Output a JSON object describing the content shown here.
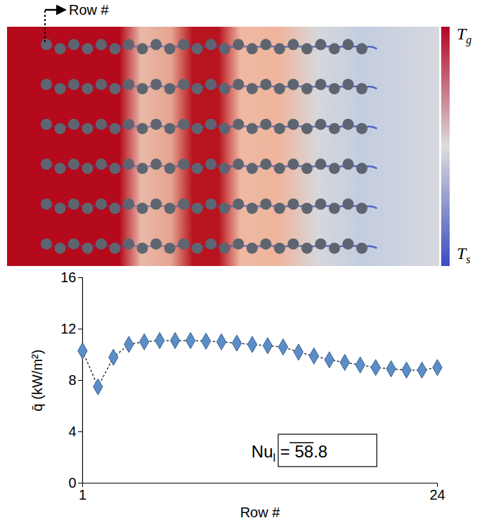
{
  "chart_data": {
    "type": "line",
    "marker": "diamond",
    "line_style": "dotted",
    "color": "#5b8ec9",
    "xlabel": "Row #",
    "ylabel": "q̄ (kW/m²)",
    "x": [
      1,
      2,
      3,
      4,
      5,
      6,
      7,
      8,
      9,
      10,
      11,
      12,
      13,
      14,
      15,
      16,
      17,
      18,
      19,
      20,
      21,
      22,
      23,
      24
    ],
    "values": [
      10.3,
      7.5,
      9.8,
      10.8,
      11.0,
      11.1,
      11.1,
      11.1,
      11.05,
      11.0,
      10.9,
      10.8,
      10.7,
      10.6,
      10.2,
      9.9,
      9.6,
      9.4,
      9.2,
      9.0,
      8.9,
      8.8,
      8.8,
      9.0
    ],
    "xlim": [
      1,
      24
    ],
    "xticks": [
      1,
      24
    ],
    "ylim": [
      0,
      16
    ],
    "yticks": [
      0,
      4,
      8,
      12,
      16
    ],
    "annotation": {
      "symbol": "Nu",
      "subscript": "l",
      "relation": "=",
      "value": 58.8
    }
  },
  "field": {
    "row_label": "Row #",
    "rows": 6,
    "cylinders_per_row": 24,
    "colorbar": {
      "top": {
        "symbol": "T",
        "subscript": "g"
      },
      "bottom": {
        "symbol": "T",
        "subscript": "s"
      }
    }
  }
}
